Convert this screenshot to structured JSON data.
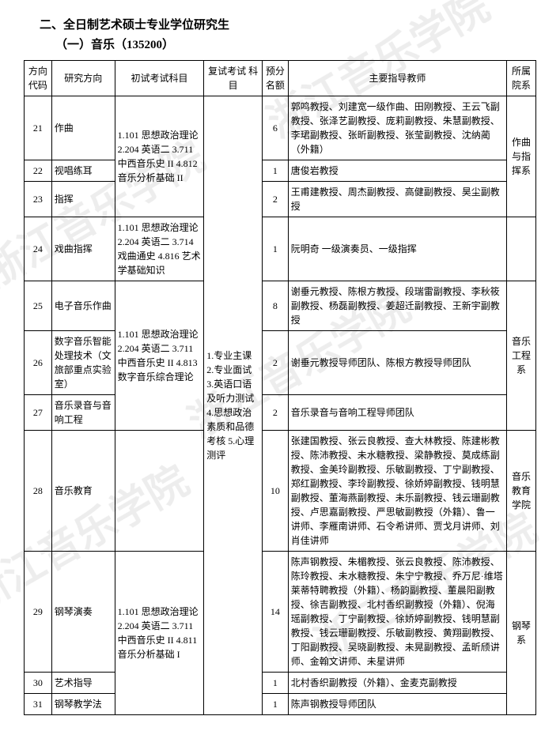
{
  "header": "二、全日制艺术硕士专业学位研究生",
  "subheader": "（一）音乐（135200）",
  "watermark": "浙江音乐学院",
  "cols": {
    "c1": "方向\n代码",
    "c2": "研究方向",
    "c3": "初试考试科目",
    "c4": "复试考试\n科目",
    "c5": "预分\n名额",
    "c6": "主要指导教师",
    "c7": "所属\n院系"
  },
  "widths": {
    "c1": 34,
    "c2": 78,
    "c3": 110,
    "c4": 72,
    "c5": 32,
    "c6": 270,
    "c7": 36
  },
  "retest": "1.专业主课\n2.专业面试\n3.英语口语及听力测试\n4.思想政治素质和品德考核\n5.心理测评",
  "exam1": "1.101 思想政治理论\n2.204 英语二\n3.711 中西音乐史 II\n4.812 音乐分析基础 II",
  "exam2": "1.101 思想政治理论\n2.204 英语二\n3.714 戏曲通史\n4.816 艺术学基础知识",
  "exam3": "1.101 思想政治理论\n2.204 英语二\n3.711 中西音乐史 II\n4.813 数字音乐综合理论",
  "exam4": "1.101 思想政治理论\n2.204 英语二\n3.711 中西音乐史 II\n4.811 音乐分析基础 I",
  "dept1": "作曲与指挥系",
  "dept2": "音乐工程系",
  "dept3": "音乐教育学院",
  "dept4": "钢琴系",
  "rows": [
    {
      "code": "21",
      "dir": "作曲",
      "quota": "6",
      "teach": "郭鸣教授、刘建宽一级作曲、田刚教授、王云飞副教授、张泽艺副教授、庞莉副教授、朱慧副教授、李珺副教授、张昕副教授、张莹副教授、沈纳蔺（外籍）"
    },
    {
      "code": "22",
      "dir": "视唱练耳",
      "quota": "1",
      "teach": "唐俊岩教授"
    },
    {
      "code": "23",
      "dir": "指挥",
      "quota": "2",
      "teach": "王甫建教授、周杰副教授、高健副教授、昊尘副教授"
    },
    {
      "code": "24",
      "dir": "戏曲指挥",
      "quota": "1",
      "teach": "阮明奇 一级演奏员、一级指挥"
    },
    {
      "code": "25",
      "dir": "电子音乐作曲",
      "quota": "8",
      "teach": "谢垂元教授、陈根方教授、段瑞雷副教授、李秋筱副教授、杨磊副教授、姜超迁副教授、王新宇副教授"
    },
    {
      "code": "26",
      "dir": "数字音乐智能处理技术（文旅部重点实验室）",
      "quota": "2",
      "teach": "谢垂元教授导师团队、陈根方教授导师团队"
    },
    {
      "code": "27",
      "dir": "音乐录音与音响工程",
      "quota": "2",
      "teach": "音乐录音与音响工程导师团队"
    },
    {
      "code": "28",
      "dir": "音乐教育",
      "quota": "10",
      "teach": "张建国教授、张云良教授、查大林教授、陈建彬教授、陈沛教授、未水糖教授、梁静教授、莫成练副教授、金美玲副教授、乐敏副教授、丁宁副教授、郑红副教授、李玲副教授、徐娇婷副教授、钱明慧副教授、董海燕副教授、未乐副教授、钱云珊副教授、卢思嘉副教授、严思敏副教授（外籍）、鲁一讲师、李雁南讲师、石令希讲师、贾戈月讲师、刘肖佳讲师"
    },
    {
      "code": "29",
      "dir": "钢琴演奏",
      "quota": "14",
      "teach": "陈声钢教授、朱楣教授、张云良教授、陈沛教授、陈玲教授、未水糖教授、朱宁宁教授、乔万尼·维塔莱蒂特聘教授（外籍）、杨韵副教授、董晨阳副教授、徐吉副教授、北村香织副教授（外籍）、倪海瑶副教授、丁宁副教授、徐娇婷副教授、钱明慧副教授、钱云珊副教授、乐敏副教授、黄翔副教授、丁阳副教授、吴晓副教授、未晃副教授、孟昕颀讲师、金翰文讲师、未星讲师"
    },
    {
      "code": "30",
      "dir": "艺术指导",
      "quota": "1",
      "teach": "北村香织副教授（外籍）、金麦克副教授"
    },
    {
      "code": "31",
      "dir": "钢琴教学法",
      "quota": "1",
      "teach": "陈声钢教授导师团队"
    }
  ]
}
